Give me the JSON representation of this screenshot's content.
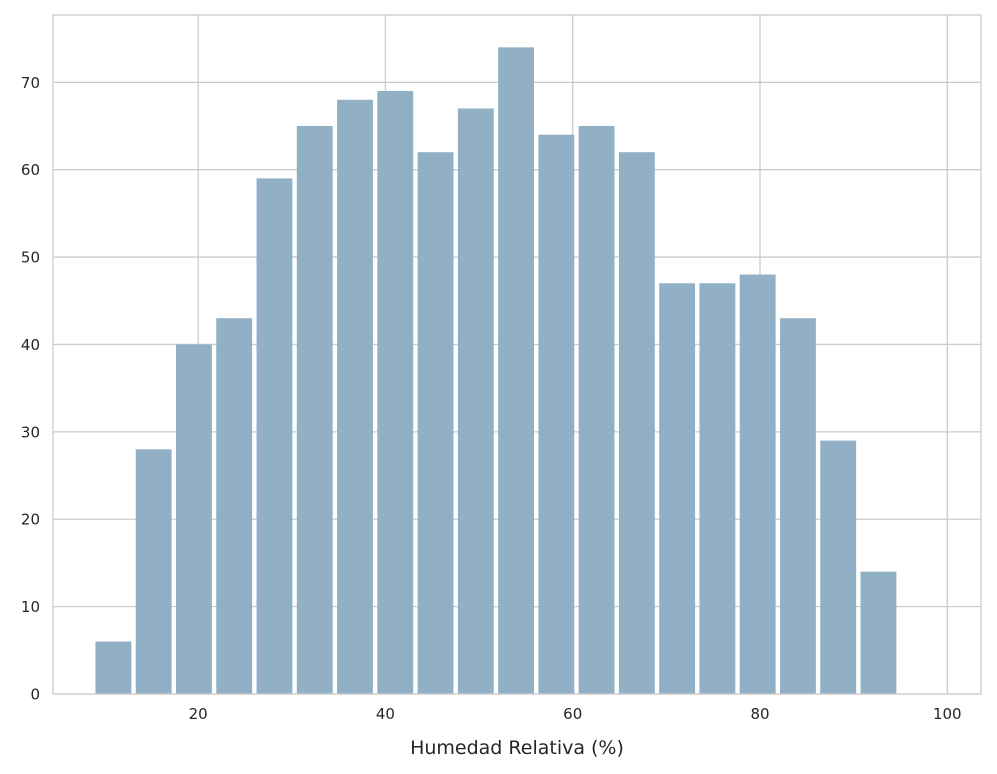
{
  "chart_data": {
    "type": "bar",
    "bins": [
      {
        "x0": 8.8,
        "x1": 13.1,
        "value": 6
      },
      {
        "x0": 13.1,
        "x1": 17.4,
        "value": 28
      },
      {
        "x0": 17.4,
        "x1": 21.7,
        "value": 40
      },
      {
        "x0": 21.7,
        "x1": 26.0,
        "value": 43
      },
      {
        "x0": 26.0,
        "x1": 30.3,
        "value": 59
      },
      {
        "x0": 30.3,
        "x1": 34.6,
        "value": 65
      },
      {
        "x0": 34.6,
        "x1": 38.9,
        "value": 68
      },
      {
        "x0": 38.9,
        "x1": 43.2,
        "value": 69
      },
      {
        "x0": 43.2,
        "x1": 47.5,
        "value": 62
      },
      {
        "x0": 47.5,
        "x1": 51.8,
        "value": 67
      },
      {
        "x0": 51.8,
        "x1": 56.1,
        "value": 74
      },
      {
        "x0": 56.1,
        "x1": 60.4,
        "value": 64
      },
      {
        "x0": 60.4,
        "x1": 64.7,
        "value": 65
      },
      {
        "x0": 64.7,
        "x1": 69.0,
        "value": 62
      },
      {
        "x0": 69.0,
        "x1": 73.3,
        "value": 47
      },
      {
        "x0": 73.3,
        "x1": 77.6,
        "value": 47
      },
      {
        "x0": 77.6,
        "x1": 81.9,
        "value": 48
      },
      {
        "x0": 81.9,
        "x1": 86.2,
        "value": 43
      },
      {
        "x0": 86.2,
        "x1": 90.5,
        "value": 29
      },
      {
        "x0": 90.5,
        "x1": 94.8,
        "value": 14
      }
    ],
    "xlabel": "Humedad Relativa (%)",
    "ylabel": "",
    "xlim": [
      4.5,
      103.6
    ],
    "ylim": [
      0,
      77.7
    ],
    "xticks": [
      20,
      40,
      60,
      80,
      100
    ],
    "yticks": [
      0,
      10,
      20,
      30,
      40,
      50,
      60,
      70
    ],
    "grid": true,
    "bar_color": "#91b0c5"
  }
}
